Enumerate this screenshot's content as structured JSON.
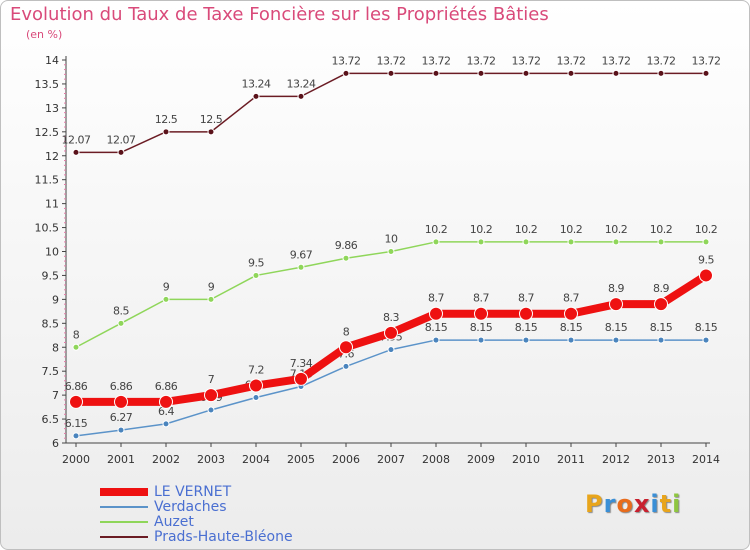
{
  "header": {
    "title": "Evolution du Taux de Taxe Foncière sur les Propriétés Bâties",
    "unit": "(en %)"
  },
  "chart_data": {
    "type": "line",
    "title": "Evolution du Taux de Taxe Foncière sur les Propriétés Bâties",
    "ylabel": "(en %)",
    "xlabel": "",
    "x": [
      "2000",
      "2001",
      "2002",
      "2003",
      "2004",
      "2005",
      "2006",
      "2007",
      "2008",
      "2009",
      "2010",
      "2011",
      "2012",
      "2013",
      "2014"
    ],
    "ylim": [
      6,
      14
    ],
    "yticks": [
      "6",
      "6.5",
      "7",
      "7.5",
      "8",
      "8.5",
      "9",
      "9.5",
      "10",
      "10.5",
      "11",
      "11.5",
      "12",
      "12.5",
      "13",
      "13.5",
      "14"
    ],
    "grid": false,
    "legend_position": "bottom-left",
    "series": [
      {
        "name": "Prads-Haute-Bléone",
        "color": "#6b1c24",
        "values": [
          12.07,
          12.07,
          12.5,
          12.5,
          13.24,
          13.24,
          13.72,
          13.72,
          13.72,
          13.72,
          13.72,
          13.72,
          13.72,
          13.72,
          13.72
        ],
        "labels": [
          "12.07",
          "12.07",
          "12.5",
          "12.5",
          "13.24",
          "13.24",
          "13.72",
          "13.72",
          "13.72",
          "13.72",
          "13.72",
          "13.72",
          "13.72",
          "13.72",
          "13.72"
        ]
      },
      {
        "name": "Auzet",
        "color": "#8fd65a",
        "values": [
          8,
          8.5,
          9,
          9,
          9.5,
          9.67,
          9.86,
          10,
          10.2,
          10.2,
          10.2,
          10.2,
          10.2,
          10.2,
          10.2
        ],
        "labels": [
          "8",
          "8.5",
          "9",
          "9",
          "9.5",
          "9.67",
          "9.86",
          "10",
          "10.2",
          "10.2",
          "10.2",
          "10.2",
          "10.2",
          "10.2",
          "10.2"
        ]
      },
      {
        "name": "Verdaches",
        "color": "#5b93c9",
        "values": [
          6.15,
          6.27,
          6.4,
          6.69,
          6.95,
          7.18,
          7.6,
          7.95,
          8.15,
          8.15,
          8.15,
          8.15,
          8.15,
          8.15,
          8.15
        ],
        "labels": [
          "6.15",
          "6.27",
          "6.4",
          "6.69",
          "6.95",
          "7.18",
          "7.6",
          "7.95",
          "8.15",
          "8.15",
          "8.15",
          "8.15",
          "8.15",
          "8.15",
          "8.15"
        ]
      },
      {
        "name": "LE VERNET",
        "color": "#ee1111",
        "values": [
          6.86,
          6.86,
          6.86,
          7,
          7.2,
          7.34,
          8,
          8.3,
          8.7,
          8.7,
          8.7,
          8.7,
          8.9,
          8.9,
          9.5
        ],
        "labels": [
          "6.86",
          "6.86",
          "6.86",
          "7",
          "7.2",
          "7.34",
          "8",
          "8.3",
          "8.7",
          "8.7",
          "8.7",
          "8.7",
          "8.9",
          "8.9",
          "9.5"
        ]
      }
    ]
  },
  "legend": {
    "items": [
      {
        "label": "LE VERNET",
        "color": "#ee1111",
        "thickness": 8
      },
      {
        "label": "Verdaches",
        "color": "#5b93c9",
        "thickness": 2
      },
      {
        "label": "Auzet",
        "color": "#8fd65a",
        "thickness": 2
      },
      {
        "label": "Prads-Haute-Bléone",
        "color": "#6b1c24",
        "thickness": 2
      }
    ]
  },
  "logo": {
    "letters": [
      "P",
      "r",
      "o",
      "x",
      "i",
      "t",
      "i"
    ],
    "colors": [
      "#e8a51c",
      "#3a8fd6",
      "#e86c1c",
      "#c8202e",
      "#3a8fd6",
      "#e8a51c",
      "#8fc640"
    ]
  }
}
